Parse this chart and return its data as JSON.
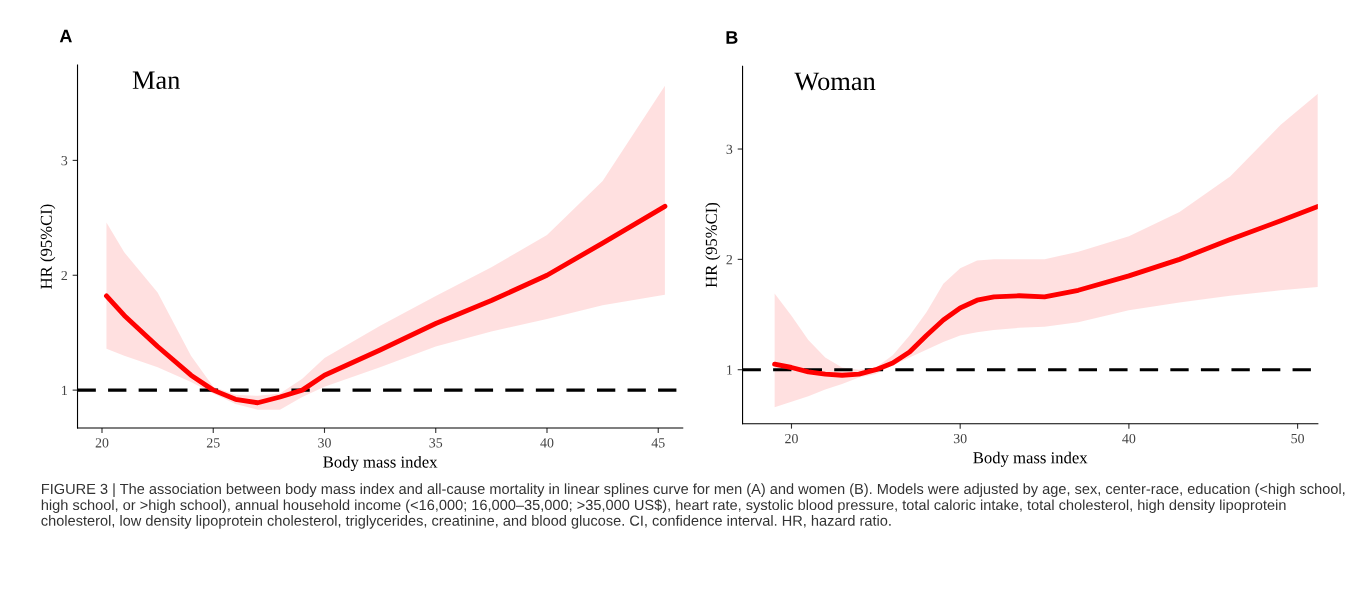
{
  "chart_data": [
    {
      "type": "line",
      "title": "A",
      "xlabel": "Body mass index",
      "ylabel": "HR (95%CI)",
      "xlim": [
        18.9,
        46.1
      ],
      "ylim": [
        0.67,
        3.83
      ],
      "xticks": [
        20,
        25,
        30,
        35,
        40,
        45
      ],
      "yticks": [
        1,
        2,
        3
      ],
      "series": [
        {
          "color": "#ff0000",
          "x": [
            20.2,
            21,
            22.5,
            24,
            25,
            26,
            27,
            28,
            29,
            30,
            32.5,
            35,
            37.5,
            40,
            42.5,
            45.3
          ],
          "values": [
            1.82,
            1.65,
            1.38,
            1.13,
            1.0,
            0.92,
            0.89,
            0.94,
            1.0,
            1.13,
            1.35,
            1.58,
            1.78,
            2.0,
            2.28,
            2.6
          ],
          "lower": [
            1.36,
            1.3,
            1.2,
            1.07,
            0.97,
            0.88,
            0.83,
            0.83,
            0.94,
            1.03,
            1.2,
            1.38,
            1.51,
            1.62,
            1.74,
            1.83
          ],
          "upper": [
            2.46,
            2.2,
            1.85,
            1.3,
            1.03,
            0.96,
            0.95,
            0.97,
            1.1,
            1.28,
            1.56,
            1.82,
            2.07,
            2.35,
            2.82,
            3.65
          ]
        }
      ],
      "ref_lines": [
        {
          "axis": "y",
          "value": 1,
          "color": "#000000",
          "line_style": "dashed"
        }
      ],
      "annotations": [
        "Man",
        "FIGURE 3 | The association between body mass index and all-cause mortality in linear splines curve for men (A) and women (B). Models were adjusted by age, sex, center-race, education (<high school, high school, or >high school), annual household income (<16,000; 16,000–35,000; >35,000 US$), heart rate, systolic blood pressure, total caloric intake, total cholesterol, high density lipoprotein cholesterol, low density lipoprotein cholesterol, triglycerides, creatinine, and blood glucose. CI, confidence interval. HR, hazard ratio."
      ]
    },
    {
      "type": "line",
      "title": "B",
      "xlabel": "Body mass index",
      "ylabel": "HR (95%CI)",
      "xlim": [
        17.1,
        51.2
      ],
      "ylim": [
        0.51,
        3.75
      ],
      "xticks": [
        20,
        30,
        40,
        50
      ],
      "yticks": [
        1,
        2,
        3
      ],
      "series": [
        {
          "color": "#ff0000",
          "x": [
            19,
            20,
            21,
            22,
            23,
            24,
            25,
            26,
            27,
            28,
            29,
            30,
            31,
            32,
            33.5,
            35,
            37,
            40,
            43,
            46,
            49,
            51.2
          ],
          "values": [
            1.05,
            1.02,
            0.98,
            0.96,
            0.95,
            0.96,
            1.0,
            1.06,
            1.16,
            1.31,
            1.45,
            1.56,
            1.63,
            1.66,
            1.67,
            1.66,
            1.72,
            1.85,
            2.0,
            2.18,
            2.35,
            2.48
          ],
          "lower": [
            0.66,
            0.71,
            0.76,
            0.82,
            0.87,
            0.93,
            0.96,
            1.04,
            1.11,
            1.18,
            1.25,
            1.31,
            1.34,
            1.36,
            1.38,
            1.39,
            1.43,
            1.54,
            1.61,
            1.67,
            1.72,
            1.75
          ],
          "upper": [
            1.69,
            1.49,
            1.27,
            1.11,
            1.02,
            1.0,
            1.02,
            1.13,
            1.31,
            1.52,
            1.78,
            1.92,
            1.99,
            2.0,
            2.0,
            2.0,
            2.07,
            2.21,
            2.43,
            2.75,
            3.22,
            3.5
          ]
        }
      ],
      "ref_lines": [
        {
          "axis": "y",
          "value": 1,
          "color": "#000000",
          "line_style": "dashed"
        }
      ],
      "annotations": [
        "Woman"
      ]
    }
  ]
}
